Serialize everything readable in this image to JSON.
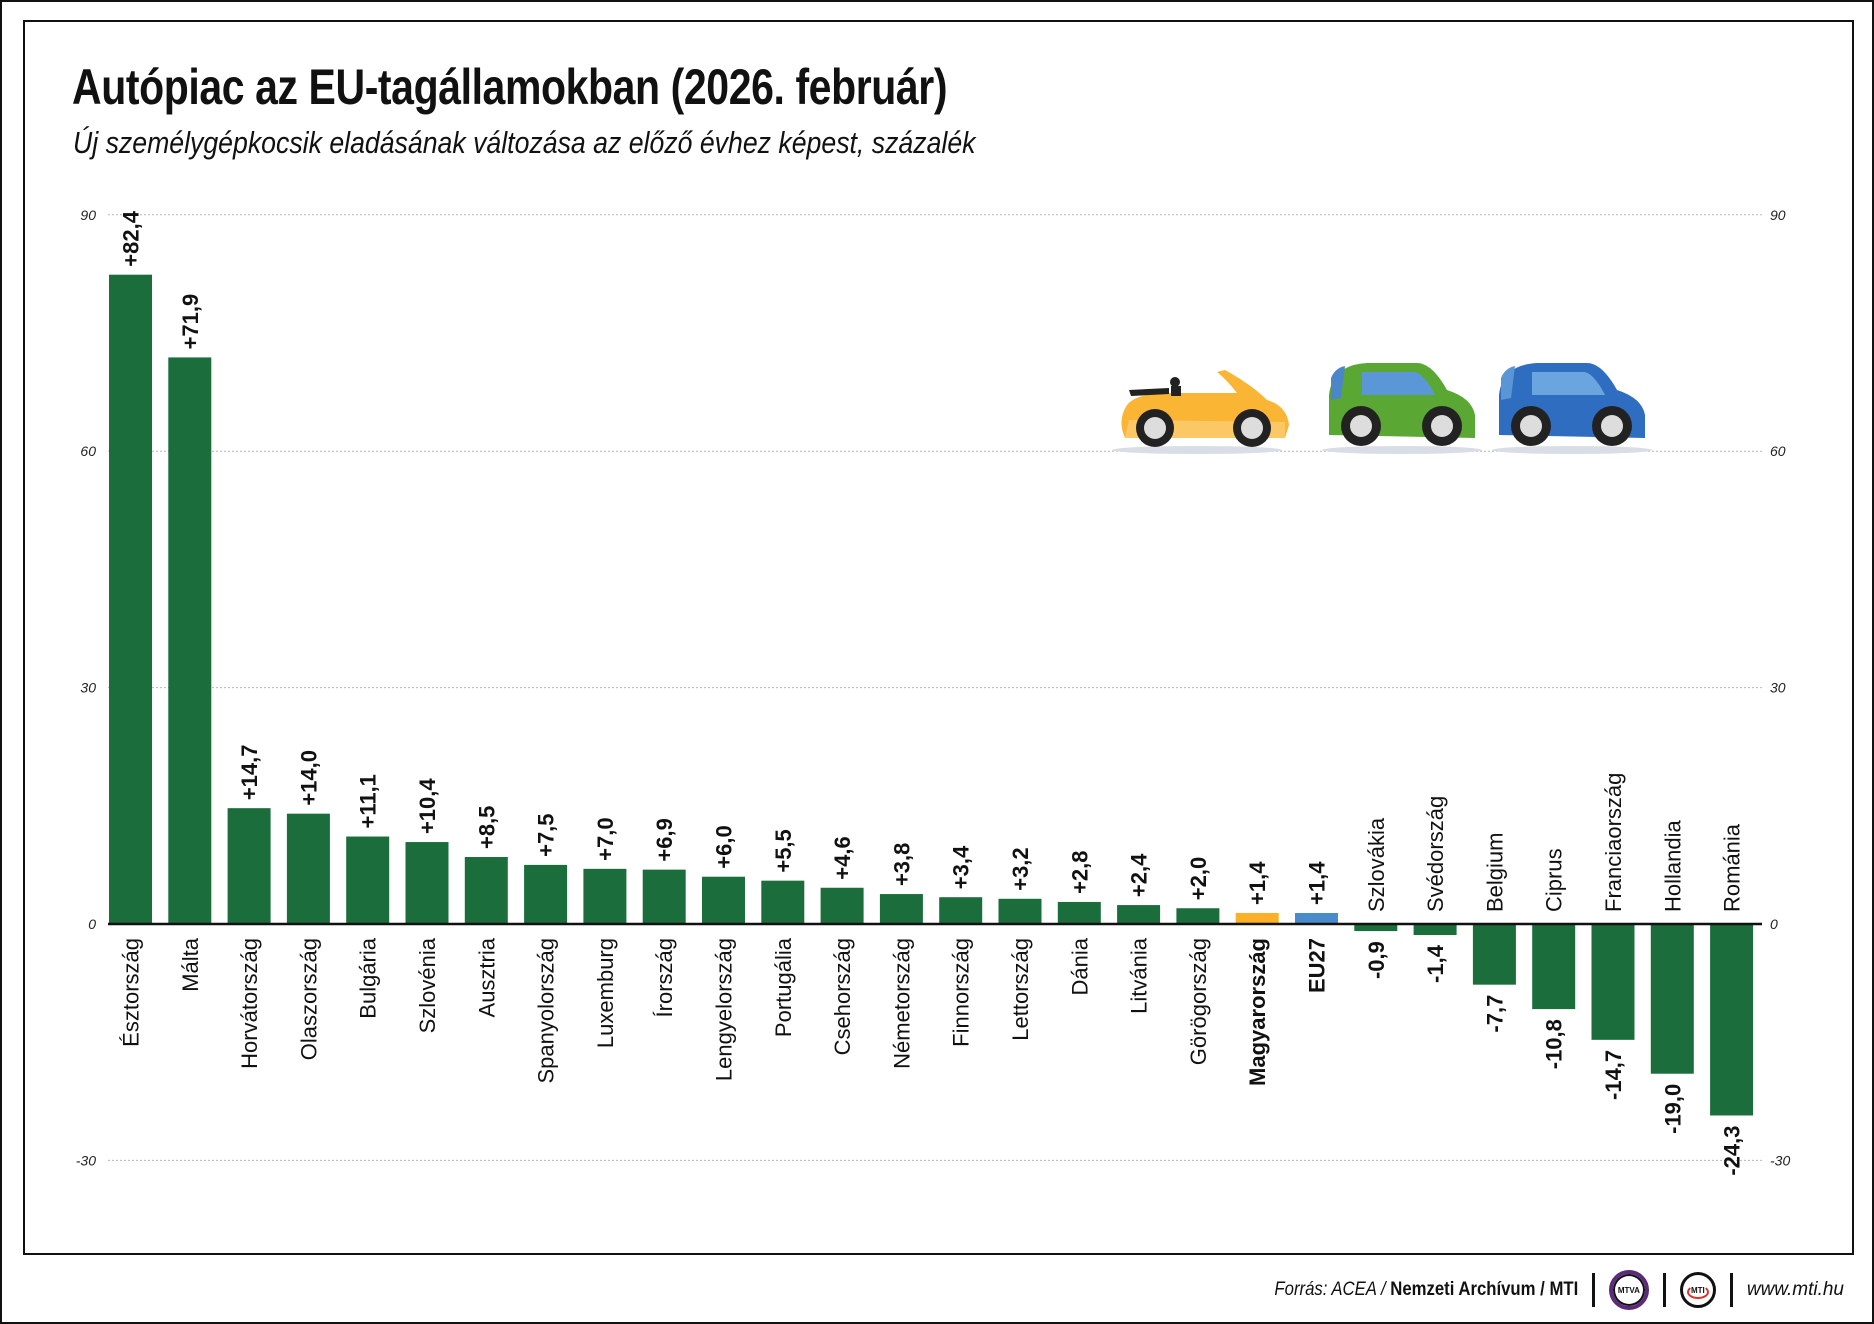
{
  "title": "Autópiac az EU-tagállamokban (2026. február)",
  "subtitle": "Új személygépkocsik eladásának változása az előző évhez képest, százalék",
  "footer": {
    "source_prefix": "Forrás: ACEA / ",
    "source_bold": "Nemzeti Archívum / MTI",
    "logo_mtva": "MTVA",
    "logo_mti": "MTI",
    "url": "www.mti.hu"
  },
  "colors": {
    "default": "#1b6e3c",
    "highlight_hungary": "#fbb027",
    "highlight_eu27": "#4a8bcb"
  },
  "chart_data": {
    "type": "bar",
    "title": "Autópiac az EU-tagállamokban (2026. február)",
    "subtitle": "Új személygépkocsik eladásának változása az előző évhez képest, százalék",
    "categories": [
      "Észtország",
      "Málta",
      "Horvátország",
      "Olaszország",
      "Bulgária",
      "Szlovénia",
      "Ausztria",
      "Spanyolország",
      "Luxemburg",
      "Írország",
      "Lengyelország",
      "Portugália",
      "Csehország",
      "Németország",
      "Finnország",
      "Lettország",
      "Dánia",
      "Litvánia",
      "Görögország",
      "Magyarország",
      "EU27",
      "Szlovákia",
      "Svédország",
      "Belgium",
      "Ciprus",
      "Franciaország",
      "Hollandia",
      "Románia"
    ],
    "values": [
      82.4,
      71.9,
      14.7,
      14.0,
      11.1,
      10.4,
      8.5,
      7.5,
      7.0,
      6.9,
      6.0,
      5.5,
      4.6,
      3.8,
      3.4,
      3.2,
      2.8,
      2.4,
      2.0,
      1.4,
      1.4,
      -0.9,
      -1.4,
      -7.7,
      -10.8,
      -14.7,
      -19.0,
      -24.3
    ],
    "value_labels": [
      "+82,4",
      "+71,9",
      "+14,7",
      "+14,0",
      "+11,1",
      "+10,4",
      "+8,5",
      "+7,5",
      "+7,0",
      "+6,9",
      "+6,0",
      "+5,5",
      "+4,6",
      "+3,8",
      "+3,4",
      "+3,2",
      "+2,8",
      "+2,4",
      "+2,0",
      "+1,4",
      "+1,4",
      "-0,9",
      "-1,4",
      "-7,7",
      "-10,8",
      "-14,7",
      "-19,0",
      "-24,3"
    ],
    "highlighted": {
      "Magyarország": "#fbb027",
      "EU27": "#4a8bcb"
    },
    "bold_categories": [
      "Magyarország",
      "EU27"
    ],
    "ylim": [
      -30,
      90
    ],
    "yticks": [
      90,
      60,
      30,
      0,
      -30
    ],
    "ytick_labels": [
      "90",
      "60",
      "30",
      "0",
      "-30"
    ],
    "y_axis_both_sides": true,
    "grid": "dotted horizontal",
    "xlabel": "",
    "ylabel": ""
  },
  "illustration": {
    "icons": [
      "yellow-convertible-car-icon",
      "green-hatchback-car-icon",
      "blue-hatchback-car-icon"
    ]
  }
}
